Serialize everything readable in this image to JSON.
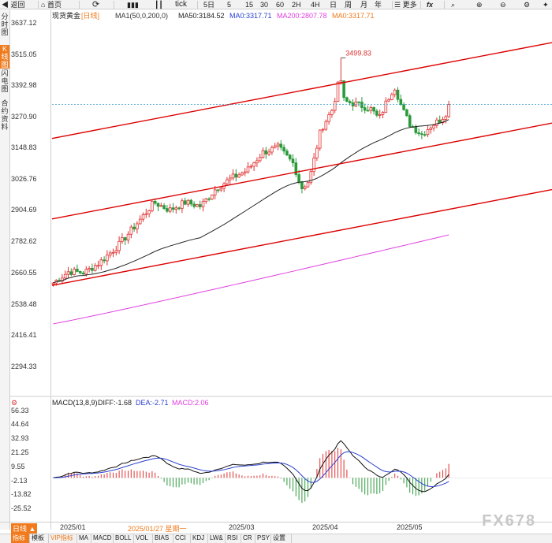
{
  "toolbar": {
    "back": "返回",
    "home": "首页",
    "tick": "tick",
    "periods": [
      "5日",
      "5",
      "15",
      "30",
      "60",
      "2H",
      "4H",
      "日",
      "周",
      "月",
      "年"
    ],
    "more": "更多",
    "fx": "fx"
  },
  "sidebar": {
    "items": [
      "分时图",
      "K线图",
      "闪电图",
      "合约资料"
    ]
  },
  "chart_info": {
    "symbol": "现货黄金",
    "period": "[日线]",
    "ma1": "MA1(50,0,200,0)",
    "ma50": "MA50:3184.52",
    "ma0a": "MA0:3317.71",
    "ma200": "MA200:2807.78",
    "ma0b": "MA0:3317.71"
  },
  "macd_info": {
    "label": "MACD(13,8,9)",
    "diff": "DIFF:-1.68",
    "dea": "DEA:-2.71",
    "macd": "MACD:2.06"
  },
  "yaxis": {
    "main": [
      "3637.12",
      "3515.05",
      "3392.98",
      "3270.90",
      "3148.83",
      "3026.76",
      "2904.69",
      "2782.62",
      "2660.55",
      "2538.48",
      "2416.41",
      "2294.33"
    ],
    "macd": [
      "56.33",
      "44.64",
      "32.93",
      "21.25",
      "9.55",
      "-2.13",
      "-13.82",
      "-25.52"
    ]
  },
  "xaxis": {
    "labels": [
      "2025/01",
      "2025/03",
      "2025/04",
      "2025/05"
    ],
    "cursor_date": "2025/01/27 星期一",
    "period_label": "日线"
  },
  "annotation": {
    "high": "3499.83"
  },
  "current_price": "3317.71",
  "colors": {
    "up": "#e03030",
    "down": "#2a9a3a",
    "ma50": "#222222",
    "ma200": "#e040e0",
    "channel": "#dd0000",
    "diff": "#111111",
    "dea": "#2a3fd0",
    "accent": "#f07a1c"
  },
  "bottom_tabs": [
    "指标",
    "模板",
    "VIP指标",
    "MA",
    "MACD",
    "BOLL",
    "VOL",
    "BIAS",
    "CCI",
    "KDJ",
    "LW&",
    "RSI",
    "CR",
    "PSY",
    "设置"
  ],
  "watermark": "FX678",
  "chart_data": [
    {
      "type": "candlestick",
      "title": "现货黄金 [日线]",
      "ylim": [
        2294.33,
        3637.12
      ],
      "series": [
        {
          "name": "MA50",
          "last": 3184.52
        },
        {
          "name": "MA200",
          "last": 2807.78
        }
      ],
      "high_annotation": 3499.83,
      "current": 3317.71,
      "x_labels": [
        "2025/01",
        "2025/03",
        "2025/04",
        "2025/05"
      ]
    },
    {
      "type": "bar",
      "title": "MACD(13,8,9)",
      "series": [
        {
          "name": "DIFF",
          "last": -1.68
        },
        {
          "name": "DEA",
          "last": -2.71
        },
        {
          "name": "MACD",
          "last": 2.06
        }
      ],
      "ylim": [
        -25.52,
        56.33
      ]
    }
  ]
}
